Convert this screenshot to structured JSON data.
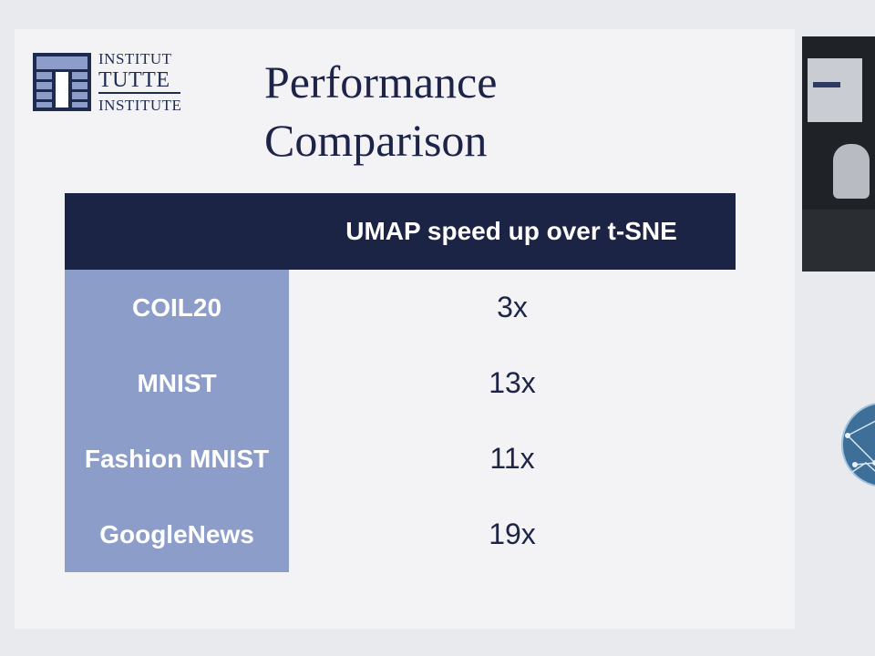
{
  "logo": {
    "line1": "INSTITUT",
    "line2": "TUTTE",
    "line3": "INSTITUTE"
  },
  "title": {
    "line1": "Performance",
    "line2": "Comparison"
  },
  "table": {
    "header": "UMAP speed up over t-SNE",
    "rows": [
      {
        "dataset": "COIL20",
        "speedup": "3x"
      },
      {
        "dataset": "MNIST",
        "speedup": "13x"
      },
      {
        "dataset": "Fashion MNIST",
        "speedup": "11x"
      },
      {
        "dataset": "GoogleNews",
        "speedup": "19x"
      }
    ]
  },
  "colors": {
    "navy": "#1c2446",
    "row_label_bg": "#8b9dc8",
    "slide_bg": "#f3f3f5"
  }
}
